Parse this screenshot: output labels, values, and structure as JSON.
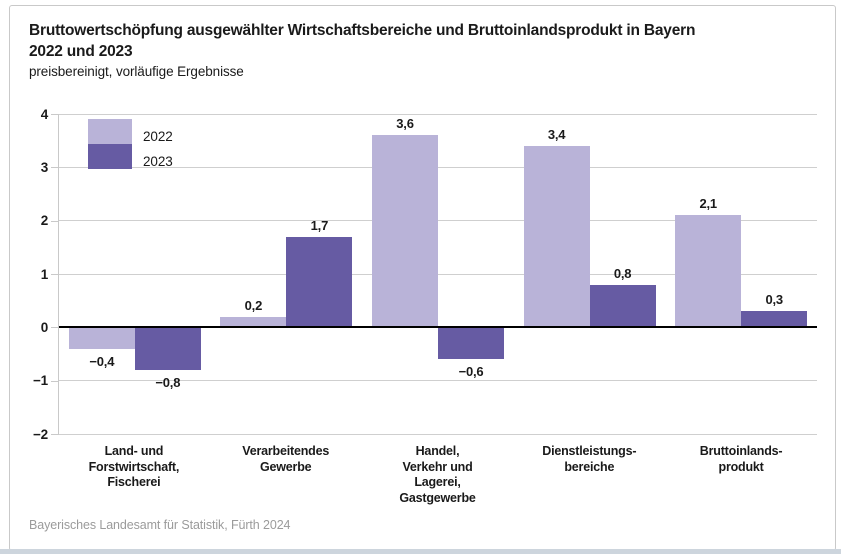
{
  "header": {
    "title_line1": "Bruttowertschöpfung ausgewählter Wirtschaftsbereiche und Bruttoinlandsprodukt in Bayern",
    "title_line2": "2022 und 2023",
    "subtitle": "preisbereinigt, vorläufige Ergebnisse"
  },
  "footer": {
    "source": "Bayerisches Landesamt für Statistik, Fürth 2024"
  },
  "colors": {
    "series_2022": "#b9b3d8",
    "series_2023": "#665ba3",
    "gridline": "#cfcfcf",
    "zero_line": "#000000",
    "axis_line": "#c9c9c9",
    "text": "#1a1a1a",
    "footer_text": "#9b9b9b",
    "frame_border": "#c9c9c9",
    "bottom_strip": "#cdd5dd"
  },
  "chart_data": {
    "type": "bar",
    "title": "Bruttowertschöpfung ausgewählter Wirtschaftsbereiche und Bruttoinlandsprodukt in Bayern 2022 und 2023",
    "subtitle": "preisbereinigt, vorläufige Ergebnisse",
    "categories": [
      {
        "label": "Land- und Forstwirtschaft, Fischerei",
        "lines": [
          "Land- und",
          "Forstwirtschaft,",
          "Fischerei"
        ]
      },
      {
        "label": "Verarbeitendes Gewerbe",
        "lines": [
          "Verarbeitendes",
          "Gewerbe"
        ]
      },
      {
        "label": "Handel, Verkehr und Lagerei, Gastgewerbe",
        "lines": [
          "Handel,",
          "Verkehr und",
          "Lagerei,",
          "Gastgewerbe"
        ]
      },
      {
        "label": "Dienstleistungsbereiche",
        "lines": [
          "Dienstleistungs-",
          "bereiche"
        ]
      },
      {
        "label": "Bruttoinlandsprodukt",
        "lines": [
          "Bruttoinlands-",
          "produkt"
        ]
      }
    ],
    "series": [
      {
        "name": "2022",
        "color": "#b9b3d8",
        "values": [
          -0.4,
          0.2,
          3.6,
          3.4,
          2.1
        ],
        "value_labels": [
          "−0,4",
          "0,2",
          "3,6",
          "3,4",
          "2,1"
        ]
      },
      {
        "name": "2023",
        "color": "#665ba3",
        "values": [
          -0.8,
          1.7,
          -0.6,
          0.8,
          0.3
        ],
        "value_labels": [
          "−0,8",
          "1,7",
          "−0,6",
          "0,8",
          "0,3"
        ]
      }
    ],
    "ylim": [
      -2,
      4
    ],
    "ytick_step": 1,
    "ytick_labels": [
      "4",
      "3",
      "2",
      "1",
      "0",
      "−1",
      "−2"
    ],
    "grid": true,
    "legend_position": "top-left",
    "xlabel": "",
    "ylabel": ""
  }
}
